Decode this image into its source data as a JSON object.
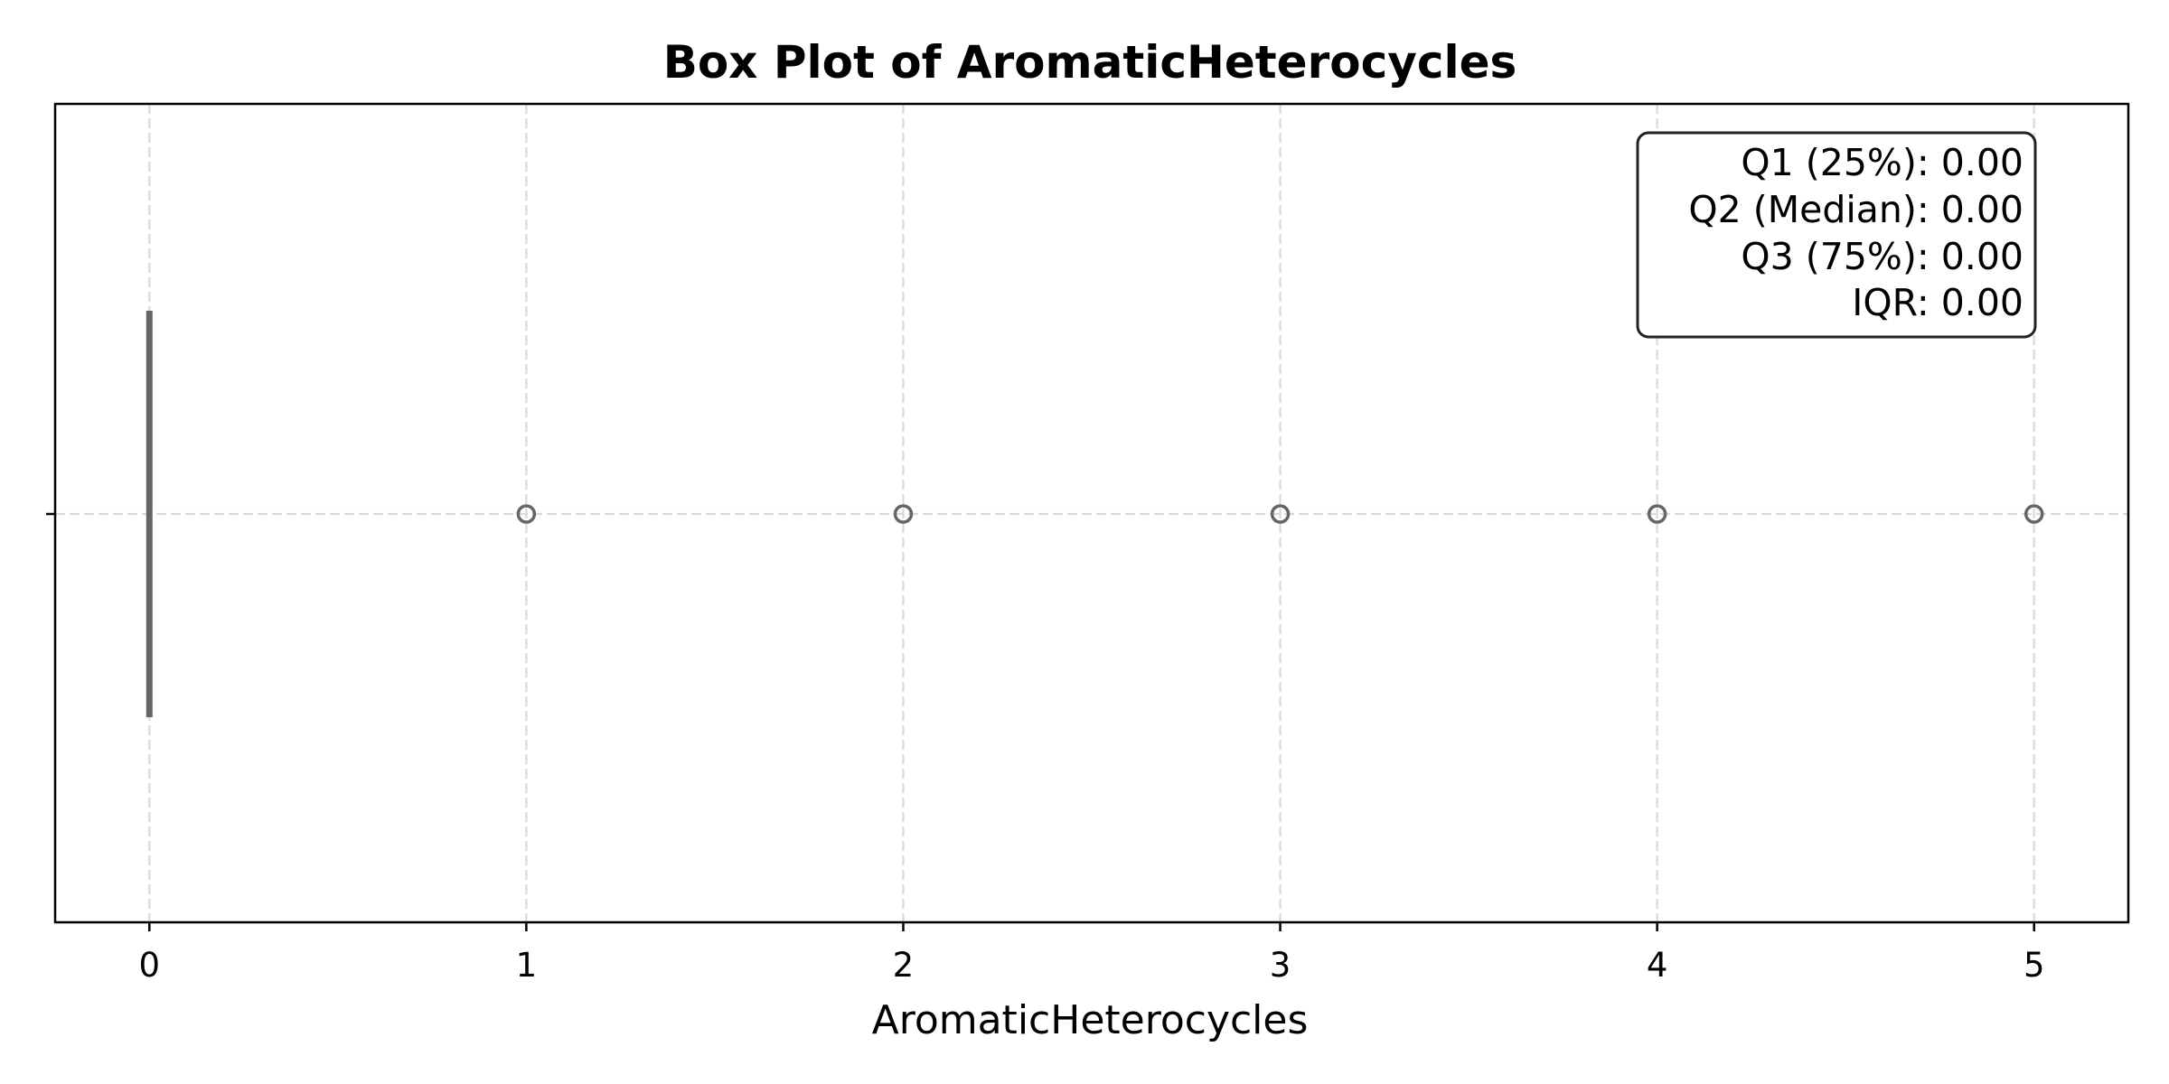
{
  "chart_data": {
    "type": "box",
    "orientation": "horizontal",
    "title": "Box Plot of AromaticHeterocycles",
    "xlabel": "AromaticHeterocycles",
    "ylabel": "",
    "xlim": [
      -0.25,
      5.25
    ],
    "x_ticks": [
      "0",
      "1",
      "2",
      "3",
      "4",
      "5"
    ],
    "grid": true,
    "box": {
      "q1": 0,
      "median": 0,
      "q3": 0,
      "whisker_low": 0,
      "whisker_high": 0
    },
    "outliers": [
      1,
      2,
      3,
      4,
      5
    ],
    "stats_box": {
      "placement": "top-right",
      "lines": [
        "Q1 (25%): 0.00",
        "Q2 (Median): 0.00",
        "Q3 (75%): 0.00",
        "IQR: 0.00"
      ]
    },
    "colors": {
      "box": "#666666",
      "outlier_edge": "#666666",
      "grid": "#d9d9d9"
    }
  }
}
